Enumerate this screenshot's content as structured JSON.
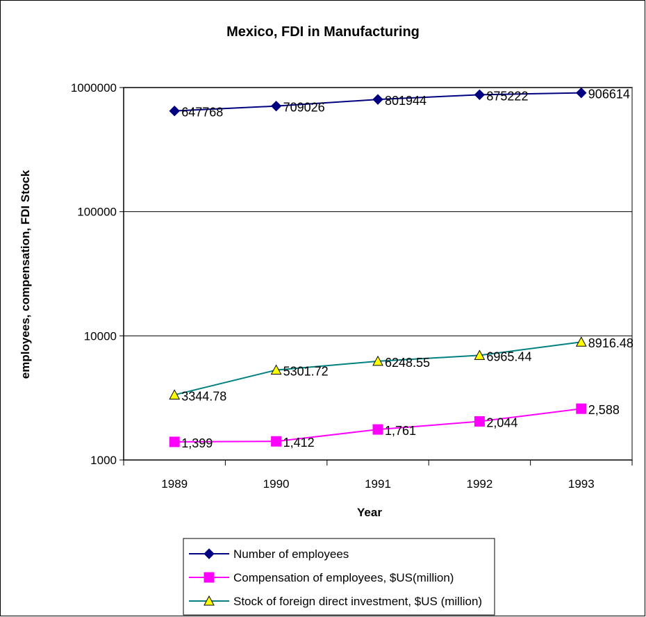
{
  "chart_data": {
    "type": "line",
    "title": "Mexico, FDI in Manufacturing",
    "xlabel": "Year",
    "ylabel": "employees, compensation, FDI Stock",
    "yscale": "log",
    "ylim": [
      1000,
      1000000
    ],
    "yticks": [
      "1000",
      "10000",
      "100000",
      "1000000"
    ],
    "categories": [
      "1989",
      "1990",
      "1991",
      "1992",
      "1993"
    ],
    "grid": "horizontal major gridlines",
    "legend_position": "bottom",
    "series": [
      {
        "name": "Number of employees",
        "values": [
          647768,
          709026,
          801944,
          875222,
          906614
        ],
        "labels": [
          "647768",
          "709026",
          "801944",
          "875222",
          "906614"
        ],
        "color": "#000080",
        "marker": "diamond"
      },
      {
        "name": "Compensation of employees, $US(million)",
        "values": [
          1399,
          1412,
          1761,
          2044,
          2588
        ],
        "labels": [
          "1,399",
          "1,412",
          "1,761",
          "2,044",
          "2,588"
        ],
        "color": "#FF00FF",
        "marker": "square"
      },
      {
        "name": "Stock of foreign direct investment, $US (million)",
        "values": [
          3344.78,
          5301.72,
          6248.55,
          6965.44,
          8916.48
        ],
        "labels": [
          "3344.78",
          "5301.72",
          "6248.55",
          "6965.44",
          "8916.48"
        ],
        "color": "#008080",
        "marker": "triangle",
        "marker_fill": "#FFFF00"
      }
    ]
  }
}
